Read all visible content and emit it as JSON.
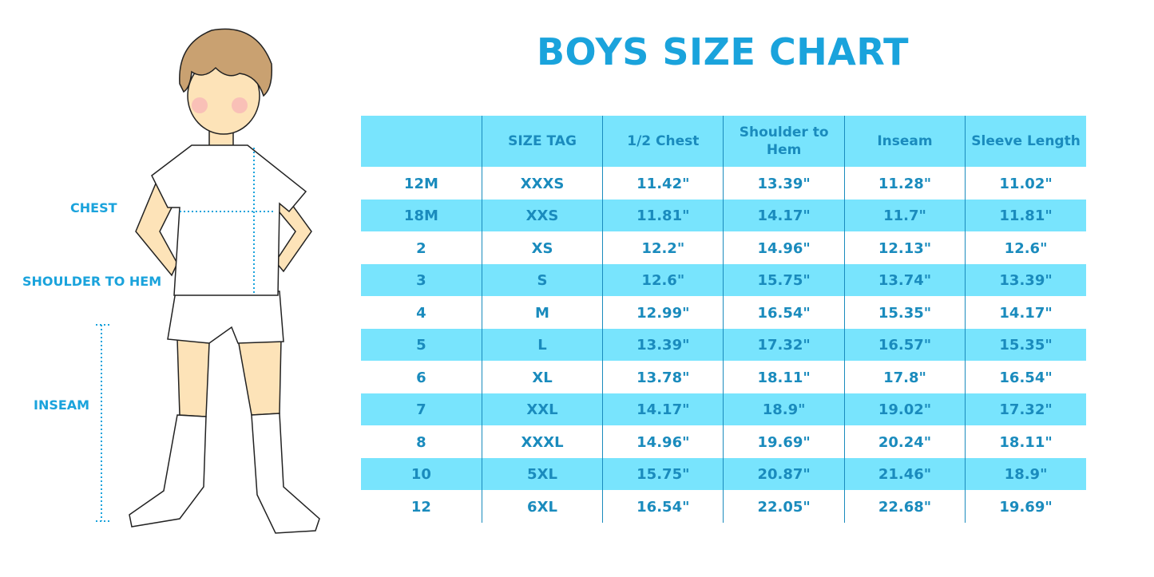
{
  "title": "BOYS SIZE CHART",
  "figure_labels": {
    "chest": "CHEST",
    "shoulder_to_hem": "SHOULDER TO HEM",
    "inseam": "INSEAM"
  },
  "colors": {
    "accent": "#1aa3dc",
    "stripe": "#78e4fd",
    "text": "#1a8bbd"
  },
  "table": {
    "headers": [
      "",
      "SIZE TAG",
      "1/2 Chest",
      "Shoulder to Hem",
      "Inseam",
      "Sleeve Length"
    ],
    "rows": [
      [
        "12M",
        "XXXS",
        "11.42\"",
        "13.39\"",
        "11.28\"",
        "11.02\""
      ],
      [
        "18M",
        "XXS",
        "11.81\"",
        "14.17\"",
        "11.7\"",
        "11.81\""
      ],
      [
        "2",
        "XS",
        "12.2\"",
        "14.96\"",
        "12.13\"",
        "12.6\""
      ],
      [
        "3",
        "S",
        "12.6\"",
        "15.75\"",
        "13.74\"",
        "13.39\""
      ],
      [
        "4",
        "M",
        "12.99\"",
        "16.54\"",
        "15.35\"",
        "14.17\""
      ],
      [
        "5",
        "L",
        "13.39\"",
        "17.32\"",
        "16.57\"",
        "15.35\""
      ],
      [
        "6",
        "XL",
        "13.78\"",
        "18.11\"",
        "17.8\"",
        "16.54\""
      ],
      [
        "7",
        "XXL",
        "14.17\"",
        "18.9\"",
        "19.02\"",
        "17.32\""
      ],
      [
        "8",
        "XXXL",
        "14.96\"",
        "19.69\"",
        "20.24\"",
        "18.11\""
      ],
      [
        "10",
        "5XL",
        "15.75\"",
        "20.87\"",
        "21.46\"",
        "18.9\""
      ],
      [
        "12",
        "6XL",
        "16.54\"",
        "22.05\"",
        "22.68\"",
        "19.69\""
      ]
    ]
  }
}
